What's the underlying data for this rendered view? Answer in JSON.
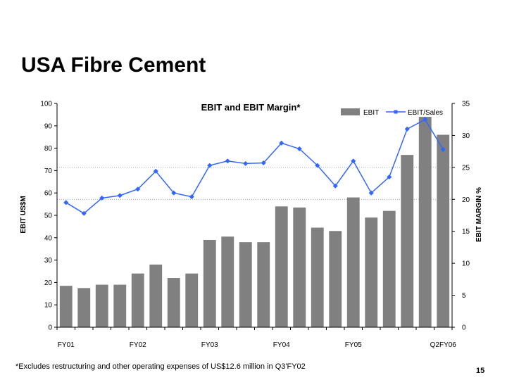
{
  "slide": {
    "title": "USA Fibre Cement",
    "footnote": "*Excludes restructuring and other operating expenses of US$12.6 million in Q3'FY02",
    "page_number": "15"
  },
  "chart_data": {
    "type": "bar",
    "title": "EBIT and EBIT Margin*",
    "categories": [
      "FY01 Q1",
      "FY01 Q2",
      "FY01 Q3",
      "FY01 Q4",
      "FY02 Q1",
      "FY02 Q2",
      "FY02 Q3",
      "FY02 Q4",
      "FY03 Q1",
      "FY03 Q2",
      "FY03 Q3",
      "FY03 Q4",
      "FY04 Q1",
      "FY04 Q2",
      "FY04 Q3",
      "FY04 Q4",
      "FY05 Q1",
      "FY05 Q2",
      "FY05 Q3",
      "FY05 Q4",
      "FY06 Q1",
      "FY06 Q2"
    ],
    "x_tick_labels": [
      {
        "index": 0,
        "label": "FY01"
      },
      {
        "index": 4,
        "label": "FY02"
      },
      {
        "index": 8,
        "label": "FY03"
      },
      {
        "index": 12,
        "label": "FY04"
      },
      {
        "index": 16,
        "label": "FY05"
      },
      {
        "index": 21,
        "label": "Q2FY06"
      }
    ],
    "series": [
      {
        "name": "EBIT",
        "type": "bar",
        "axis": "left",
        "color": "#808080",
        "values": [
          18.5,
          17.5,
          19,
          19,
          24,
          28,
          22,
          24,
          39,
          40.5,
          38,
          38,
          54,
          53.5,
          44.5,
          43,
          58,
          49,
          52,
          77,
          94,
          86
        ]
      },
      {
        "name": "EBIT/Sales",
        "type": "line",
        "axis": "right",
        "color": "#3366ff",
        "values": [
          19.5,
          17.8,
          20.2,
          20.6,
          21.6,
          24.4,
          21,
          20.4,
          25.3,
          26,
          25.6,
          25.7,
          28.8,
          27.9,
          25.3,
          22.1,
          26,
          21,
          23.5,
          31,
          32.5,
          27.8
        ]
      }
    ],
    "ylabel": "EBIT US$M",
    "ylabel_right": "EBIT MARGIN %",
    "ylim": [
      0,
      100
    ],
    "ylim_right": [
      0,
      35
    ],
    "yticks": [
      0,
      10,
      20,
      30,
      40,
      50,
      60,
      70,
      80,
      90,
      100
    ],
    "yticks_right": [
      0,
      5,
      10,
      15,
      20,
      25,
      30,
      35
    ],
    "reference_lines_right": [
      20,
      25
    ],
    "legend_position": "top-right"
  }
}
